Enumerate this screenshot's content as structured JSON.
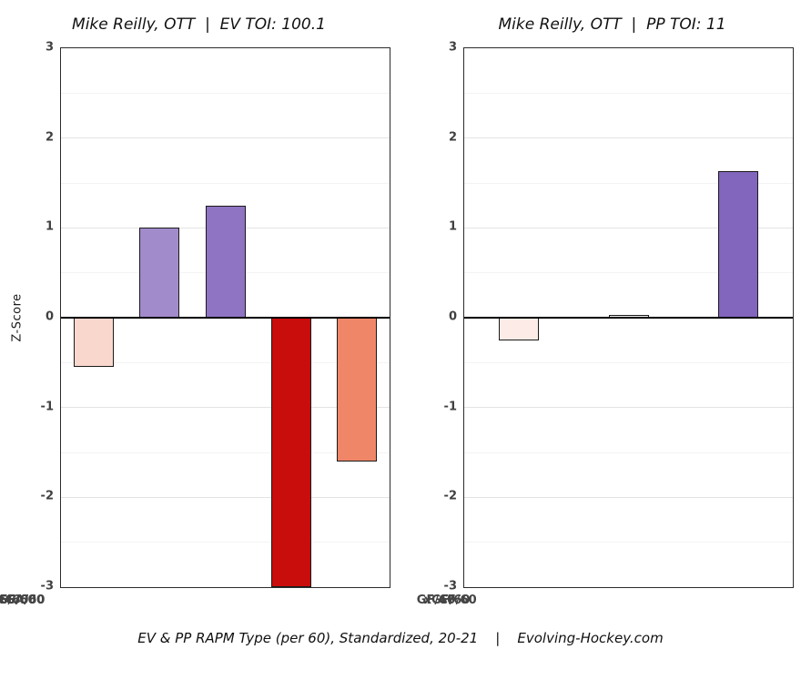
{
  "page": {
    "caption": "EV & PP RAPM Type (per 60), Standardized, 20-21    |    Evolving-Hockey.com"
  },
  "chart_data": [
    {
      "type": "bar",
      "title": "Mike Reilly, OTT  |  EV TOI: 100.1",
      "categories": [
        "GF/60",
        "xGF/60",
        "CF/60",
        "xGA/60",
        "CA/60"
      ],
      "values": [
        -0.55,
        1.0,
        1.25,
        -3.0,
        -1.6
      ],
      "colors": [
        "#fad7cd",
        "#a28bcb",
        "#8f74c3",
        "#c90c0c",
        "#ef8668"
      ],
      "ylabel": "Z-Score",
      "ylim": [
        -3,
        3
      ],
      "yticks": [
        -3,
        -2,
        -1,
        0,
        1,
        2,
        3
      ],
      "grid": true,
      "legend": "none"
    },
    {
      "type": "bar",
      "title": "Mike Reilly, OTT  |  PP TOI: 11",
      "categories": [
        "GF/60",
        "xGF/60",
        "CF/60"
      ],
      "values": [
        -0.25,
        0.03,
        1.63
      ],
      "colors": [
        "#fcebe6",
        "#f7f4f2",
        "#8265bd"
      ],
      "ylabel": "",
      "ylim": [
        -3,
        3
      ],
      "yticks": [
        -3,
        -2,
        -1,
        0,
        1,
        2,
        3
      ],
      "grid": true,
      "legend": "none"
    }
  ]
}
